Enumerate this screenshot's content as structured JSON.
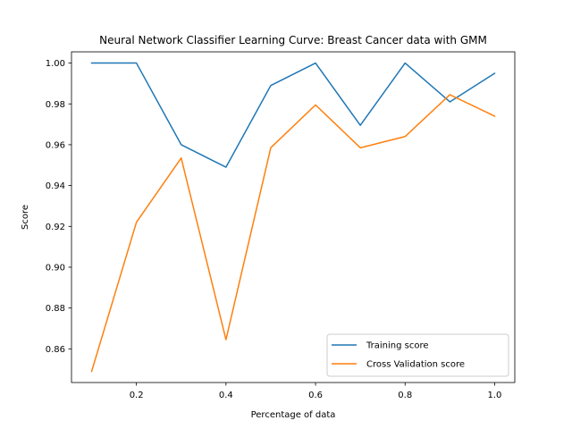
{
  "chart_data": {
    "type": "line",
    "title": "Neural Network Classifier Learning Curve: Breast Cancer data with GMM",
    "xlabel": "Percentage of data",
    "ylabel": "Score",
    "x": [
      0.1,
      0.2,
      0.3,
      0.4,
      0.5,
      0.6,
      0.7,
      0.8,
      0.9,
      1.0
    ],
    "xlim": [
      0.055,
      1.045
    ],
    "ylim": [
      0.8435,
      1.0055
    ],
    "xticks": [
      0.2,
      0.4,
      0.6,
      0.8,
      1.0
    ],
    "xtick_labels": [
      "0.2",
      "0.4",
      "0.6",
      "0.8",
      "1.0"
    ],
    "yticks": [
      0.86,
      0.88,
      0.9,
      0.92,
      0.94,
      0.96,
      0.98,
      1.0
    ],
    "ytick_labels": [
      "0.86",
      "0.88",
      "0.90",
      "0.92",
      "0.94",
      "0.96",
      "0.98",
      "1.00"
    ],
    "grid": false,
    "legend_position": "lower-right",
    "series": [
      {
        "name": "Training score",
        "color": "#1f77b4",
        "values": [
          1.0,
          1.0,
          0.96,
          0.949,
          0.989,
          1.0,
          0.9695,
          1.0,
          0.981,
          0.995
        ]
      },
      {
        "name": "Cross Validation score",
        "color": "#ff7f0e",
        "values": [
          0.849,
          0.922,
          0.9535,
          0.8645,
          0.9585,
          0.9795,
          0.9585,
          0.964,
          0.9845,
          0.974
        ]
      }
    ]
  }
}
